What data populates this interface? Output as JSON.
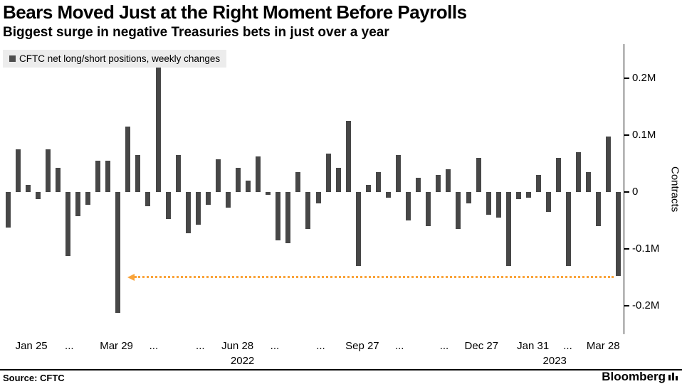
{
  "header": {
    "title": "Bears Moved Just at the Right Moment Before Payrolls",
    "subtitle": "Biggest surge in negative Treasuries bets in just over a year"
  },
  "legend": {
    "label": "CFTC net long/short positions, weekly changes",
    "swatch_color": "#4d4d4d"
  },
  "chart_data": {
    "type": "bar",
    "title": "Bears Moved Just at the Right Moment Before Payrolls",
    "subtitle": "Biggest surge in negative Treasuries bets in just over a year",
    "legend_entries": [
      "CFTC net long/short positions, weekly changes"
    ],
    "ylabel": "Contracts",
    "xlabel": "",
    "unit": "M contracts",
    "ylim": [
      -0.25,
      0.26
    ],
    "grid": false,
    "bar_color": "#474747",
    "annotation_color": "#f9a43b",
    "yticks": [
      {
        "value": 0.2,
        "label": "0.2M"
      },
      {
        "value": 0.1,
        "label": "0.1M"
      },
      {
        "value": 0,
        "label": "0"
      },
      {
        "value": -0.1,
        "label": "-0.1M"
      },
      {
        "value": -0.2,
        "label": "-0.2M"
      }
    ],
    "x_ticks": [
      {
        "label": "Jan 25",
        "pos_pct": 4.6
      },
      {
        "label": "...",
        "pos_pct": 10.7
      },
      {
        "label": "Mar 29",
        "pos_pct": 18.3
      },
      {
        "label": "...",
        "pos_pct": 24.3
      },
      {
        "label": "...",
        "pos_pct": 31.8
      },
      {
        "label": "Jun 28",
        "pos_pct": 37.8
      },
      {
        "label": "...",
        "pos_pct": 43.8
      },
      {
        "label": "...",
        "pos_pct": 51.2
      },
      {
        "label": "Sep 27",
        "pos_pct": 57.9
      },
      {
        "label": "...",
        "pos_pct": 63.9
      },
      {
        "label": "...",
        "pos_pct": 71.1
      },
      {
        "label": "Dec 27",
        "pos_pct": 77.1
      },
      {
        "label": "Jan 31",
        "pos_pct": 85.4
      },
      {
        "label": "...",
        "pos_pct": 91.0
      },
      {
        "label": "Mar 28",
        "pos_pct": 96.7
      }
    ],
    "year_labels": [
      {
        "label": "2022",
        "pos_pct": 38.6
      },
      {
        "label": "2023",
        "pos_pct": 88.9
      }
    ],
    "values": [
      -0.062,
      0.075,
      0.012,
      -0.012,
      0.075,
      0.042,
      -0.112,
      -0.042,
      -0.022,
      0.055,
      0.055,
      -0.212,
      0.115,
      0.065,
      -0.025,
      0.228,
      -0.048,
      0.065,
      -0.072,
      -0.058,
      -0.022,
      0.058,
      -0.028,
      0.042,
      0.02,
      0.062,
      -0.005,
      -0.085,
      -0.09,
      0.035,
      -0.065,
      -0.02,
      0.068,
      0.042,
      0.125,
      -0.13,
      0.012,
      0.035,
      -0.01,
      0.065,
      -0.05,
      0.025,
      -0.06,
      0.03,
      0.04,
      -0.065,
      -0.02,
      0.06,
      -0.04,
      -0.045,
      -0.13,
      -0.012,
      -0.01,
      0.03,
      -0.035,
      0.06,
      -0.13,
      0.07,
      0.035,
      -0.06,
      0.098,
      -0.148
    ],
    "annotation": {
      "value": -0.148,
      "x_start_pct": 21.2,
      "x_end_pct": 98.4,
      "style": "dotted",
      "arrow": "left"
    }
  },
  "footer": {
    "source": "Source: CFTC",
    "brand": "Bloomberg"
  }
}
